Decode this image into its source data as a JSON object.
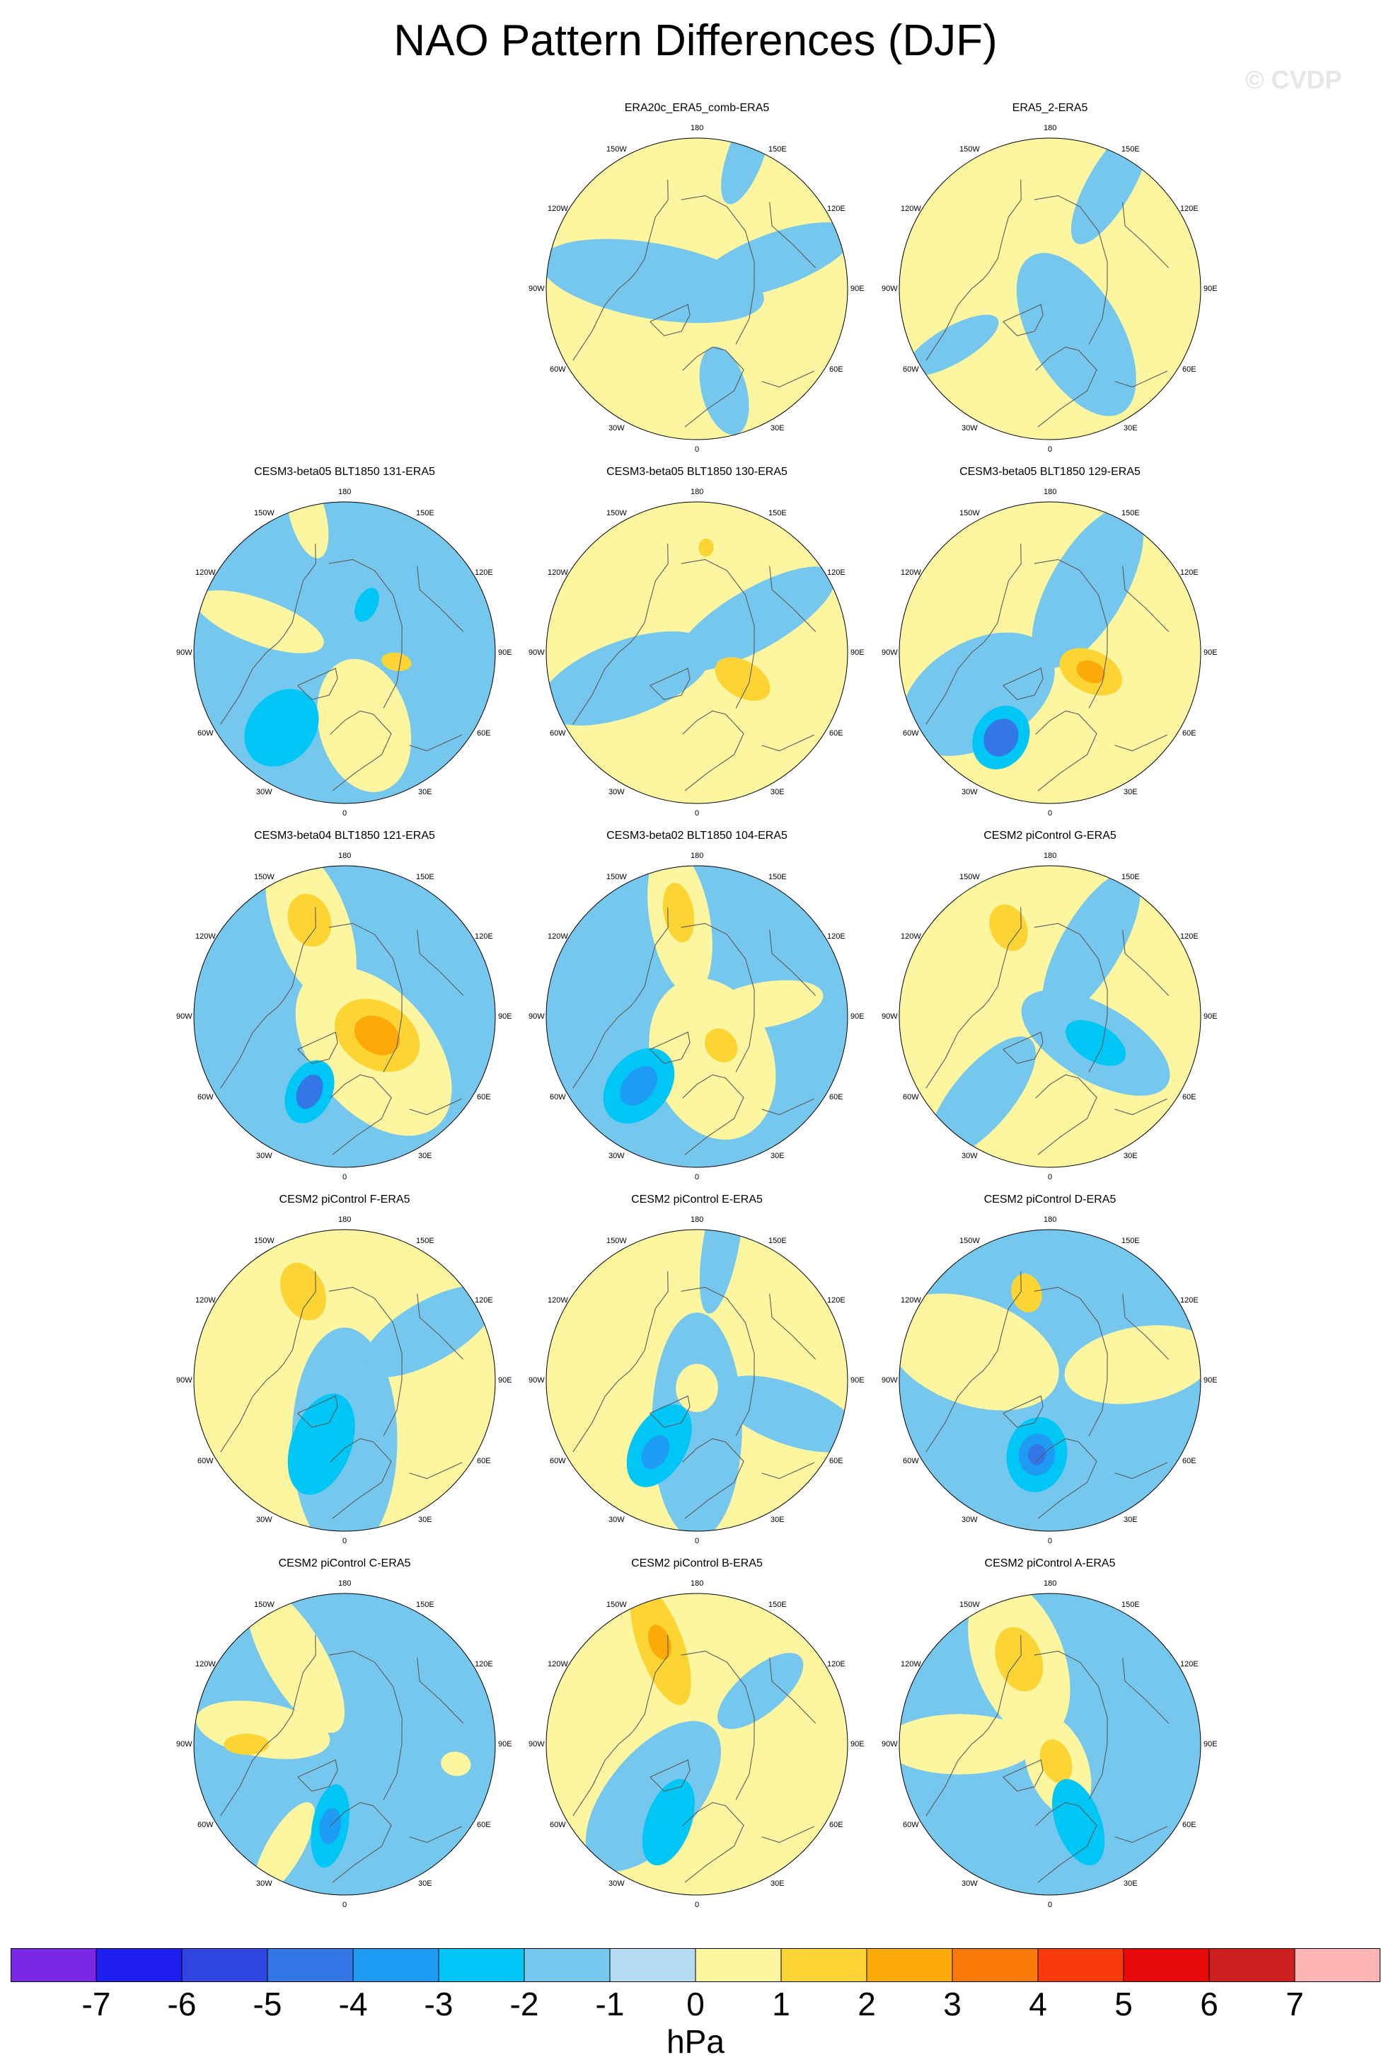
{
  "title": "NAO Pattern Differences (DJF)",
  "watermark": "© CVDP",
  "lon_labels": [
    "180",
    "150E",
    "120E",
    "90E",
    "60E",
    "30E",
    "0",
    "30W",
    "60W",
    "90W",
    "120W",
    "150W"
  ],
  "colors": {
    "land_line": "#5a5a5a",
    "levels": [
      "#7c27e8",
      "#1f1ff0",
      "#2f46e0",
      "#3377e6",
      "#1e9bf2",
      "#00c6f5",
      "#75c7ee",
      "#b3dcf2",
      "#fdf6a1",
      "#fcd535",
      "#fcaa08",
      "#fc7a0a",
      "#fa3a0a",
      "#e80a0a",
      "#cc1f1f",
      "#fcb4b4"
    ]
  },
  "chart_data": {
    "type": "polar-contour-map",
    "units": "hPa",
    "colorbar_ticks": [
      "-7",
      "-6",
      "-5",
      "-4",
      "-3",
      "-2",
      "-1",
      "0",
      "1",
      "2",
      "3",
      "4",
      "5",
      "6",
      "7"
    ],
    "panels": [
      {
        "title": "ERA20c_ERA5_comb-ERA5",
        "row": 0,
        "col": 1,
        "base": 1,
        "features": [
          {
            "lon": 260,
            "r": 0.3,
            "a": 0.75,
            "b": 0.25,
            "value": -1
          },
          {
            "lon": 110,
            "r": 0.55,
            "a": 0.55,
            "b": 0.18,
            "value": -1
          },
          {
            "lon": 160,
            "r": 0.95,
            "a": 0.35,
            "b": 0.12,
            "value": -1
          },
          {
            "lon": 15,
            "r": 0.7,
            "a": 0.3,
            "b": 0.15,
            "value": -1
          }
        ]
      },
      {
        "title": "ERA5_2-ERA5",
        "row": 0,
        "col": 2,
        "base": 1,
        "features": [
          {
            "lon": 30,
            "r": 0.35,
            "a": 0.6,
            "b": 0.3,
            "value": -1
          },
          {
            "lon": 150,
            "r": 0.8,
            "a": 0.45,
            "b": 0.15,
            "value": -1
          },
          {
            "lon": 300,
            "r": 0.75,
            "a": 0.35,
            "b": 0.12,
            "value": -1
          }
        ]
      },
      {
        "title": "CESM3-beta05 BLT1850 131-ERA5",
        "row": 1,
        "col": 0,
        "base": -1,
        "features": [
          {
            "lon": 15,
            "r": 0.5,
            "a": 0.45,
            "b": 0.3,
            "value": 1
          },
          {
            "lon": 250,
            "r": 0.6,
            "a": 0.45,
            "b": 0.15,
            "value": 1
          },
          {
            "lon": 195,
            "r": 0.95,
            "a": 0.3,
            "b": 0.12,
            "value": 1
          },
          {
            "lon": 320,
            "r": 0.65,
            "a": 0.28,
            "b": 0.22,
            "value": -2
          },
          {
            "lon": 80,
            "r": 0.35,
            "a": 0.1,
            "b": 0.06,
            "value": 2
          },
          {
            "lon": 155,
            "r": 0.35,
            "a": 0.12,
            "b": 0.07,
            "value": -2
          }
        ]
      },
      {
        "title": "CESM3-beta05 BLT1850 130-ERA5",
        "row": 1,
        "col": 1,
        "base": 1,
        "features": [
          {
            "lon": 290,
            "r": 0.5,
            "a": 0.6,
            "b": 0.25,
            "value": -1
          },
          {
            "lon": 120,
            "r": 0.45,
            "a": 0.6,
            "b": 0.2,
            "value": -1
          },
          {
            "lon": 60,
            "r": 0.35,
            "a": 0.2,
            "b": 0.12,
            "value": 2
          },
          {
            "lon": 175,
            "r": 0.7,
            "a": 0.06,
            "b": 0.05,
            "value": 2
          }
        ]
      },
      {
        "title": "CESM3-beta05 BLT1850 129-ERA5",
        "row": 1,
        "col": 2,
        "base": 1,
        "features": [
          {
            "lon": 300,
            "r": 0.55,
            "a": 0.55,
            "b": 0.35,
            "value": -1
          },
          {
            "lon": 150,
            "r": 0.5,
            "a": 0.6,
            "b": 0.25,
            "value": -1
          },
          {
            "lon": 330,
            "r": 0.65,
            "a": 0.22,
            "b": 0.18,
            "value": -2
          },
          {
            "lon": 330,
            "r": 0.65,
            "a": 0.13,
            "b": 0.11,
            "value": -4
          },
          {
            "lon": 65,
            "r": 0.3,
            "a": 0.22,
            "b": 0.14,
            "value": 2
          },
          {
            "lon": 65,
            "r": 0.3,
            "a": 0.1,
            "b": 0.07,
            "value": 3
          }
        ]
      },
      {
        "title": "CESM3-beta04 BLT1850 121-ERA5",
        "row": 2,
        "col": 0,
        "base": -1,
        "features": [
          {
            "lon": 40,
            "r": 0.3,
            "a": 0.65,
            "b": 0.4,
            "value": 1
          },
          {
            "lon": 200,
            "r": 0.65,
            "a": 0.55,
            "b": 0.25,
            "value": 1
          },
          {
            "lon": 200,
            "r": 0.68,
            "a": 0.18,
            "b": 0.14,
            "value": 2
          },
          {
            "lon": 60,
            "r": 0.25,
            "a": 0.3,
            "b": 0.22,
            "value": 2
          },
          {
            "lon": 60,
            "r": 0.25,
            "a": 0.16,
            "b": 0.12,
            "value": 3
          },
          {
            "lon": 335,
            "r": 0.55,
            "a": 0.22,
            "b": 0.15,
            "value": -2
          },
          {
            "lon": 335,
            "r": 0.55,
            "a": 0.12,
            "b": 0.08,
            "value": -4
          }
        ]
      },
      {
        "title": "CESM3-beta02 BLT1850 104-ERA5",
        "row": 2,
        "col": 1,
        "base": -1,
        "features": [
          {
            "lon": 20,
            "r": 0.3,
            "a": 0.55,
            "b": 0.4,
            "value": 1
          },
          {
            "lon": 190,
            "r": 0.65,
            "a": 0.5,
            "b": 0.2,
            "value": 1
          },
          {
            "lon": 190,
            "r": 0.7,
            "a": 0.2,
            "b": 0.1,
            "value": 2
          },
          {
            "lon": 100,
            "r": 0.45,
            "a": 0.4,
            "b": 0.15,
            "value": 1
          },
          {
            "lon": 40,
            "r": 0.25,
            "a": 0.12,
            "b": 0.1,
            "value": 2
          },
          {
            "lon": 320,
            "r": 0.6,
            "a": 0.28,
            "b": 0.2,
            "value": -2
          },
          {
            "lon": 320,
            "r": 0.6,
            "a": 0.15,
            "b": 0.1,
            "value": -3
          }
        ]
      },
      {
        "title": "CESM2 piControl G-ERA5",
        "row": 2,
        "col": 2,
        "base": 1,
        "features": [
          {
            "lon": 60,
            "r": 0.35,
            "a": 0.55,
            "b": 0.25,
            "value": -1
          },
          {
            "lon": 60,
            "r": 0.35,
            "a": 0.22,
            "b": 0.12,
            "value": -2
          },
          {
            "lon": 320,
            "r": 0.7,
            "a": 0.5,
            "b": 0.2,
            "value": -1
          },
          {
            "lon": 150,
            "r": 0.55,
            "a": 0.55,
            "b": 0.2,
            "value": -1
          },
          {
            "lon": 205,
            "r": 0.65,
            "a": 0.16,
            "b": 0.12,
            "value": 2
          }
        ]
      },
      {
        "title": "CESM2 piControl F-ERA5",
        "row": 3,
        "col": 0,
        "base": 1,
        "features": [
          {
            "lon": 0,
            "r": 0.4,
            "a": 0.75,
            "b": 0.35,
            "value": -1
          },
          {
            "lon": 340,
            "r": 0.45,
            "a": 0.35,
            "b": 0.2,
            "value": -2
          },
          {
            "lon": 120,
            "r": 0.65,
            "a": 0.5,
            "b": 0.2,
            "value": -1
          },
          {
            "lon": 205,
            "r": 0.65,
            "a": 0.2,
            "b": 0.14,
            "value": 2
          }
        ]
      },
      {
        "title": "CESM2 piControl E-ERA5",
        "row": 3,
        "col": 1,
        "base": 1,
        "features": [
          {
            "lon": 0,
            "r": 0.3,
            "a": 0.75,
            "b": 0.3,
            "value": -1
          },
          {
            "lon": 330,
            "r": 0.5,
            "a": 0.3,
            "b": 0.18,
            "value": -2
          },
          {
            "lon": 330,
            "r": 0.55,
            "a": 0.12,
            "b": 0.08,
            "value": -3
          },
          {
            "lon": 70,
            "r": 0.65,
            "a": 0.5,
            "b": 0.2,
            "value": -1
          },
          {
            "lon": 170,
            "r": 0.95,
            "a": 0.5,
            "b": 0.12,
            "value": -1
          },
          {
            "lon": 0,
            "r": 0.05,
            "a": 0.16,
            "b": 0.14,
            "value": 1
          }
        ]
      },
      {
        "title": "CESM2 piControl D-ERA5",
        "row": 3,
        "col": 2,
        "base": -1,
        "features": [
          {
            "lon": 250,
            "r": 0.55,
            "a": 0.6,
            "b": 0.35,
            "value": 1
          },
          {
            "lon": 100,
            "r": 0.6,
            "a": 0.5,
            "b": 0.25,
            "value": 1
          },
          {
            "lon": 195,
            "r": 0.6,
            "a": 0.13,
            "b": 0.1,
            "value": 2
          },
          {
            "lon": 350,
            "r": 0.5,
            "a": 0.25,
            "b": 0.2,
            "value": -2
          },
          {
            "lon": 350,
            "r": 0.5,
            "a": 0.14,
            "b": 0.12,
            "value": -3
          },
          {
            "lon": 350,
            "r": 0.5,
            "a": 0.07,
            "b": 0.06,
            "value": -4
          }
        ]
      },
      {
        "title": "CESM2 piControl C-ERA5",
        "row": 4,
        "col": 0,
        "base": -1,
        "features": [
          {
            "lon": 210,
            "r": 0.65,
            "a": 0.55,
            "b": 0.2,
            "value": 1
          },
          {
            "lon": 260,
            "r": 0.55,
            "a": 0.45,
            "b": 0.18,
            "value": 1
          },
          {
            "lon": 270,
            "r": 0.65,
            "a": 0.15,
            "b": 0.07,
            "value": 2
          },
          {
            "lon": 330,
            "r": 0.8,
            "a": 0.35,
            "b": 0.12,
            "value": 1
          },
          {
            "lon": 80,
            "r": 0.75,
            "a": 0.1,
            "b": 0.08,
            "value": 1
          },
          {
            "lon": 350,
            "r": 0.55,
            "a": 0.28,
            "b": 0.12,
            "value": -2
          },
          {
            "lon": 350,
            "r": 0.55,
            "a": 0.12,
            "b": 0.07,
            "value": -3
          }
        ]
      },
      {
        "title": "CESM2 piControl B-ERA5",
        "row": 4,
        "col": 1,
        "base": 1,
        "features": [
          {
            "lon": 320,
            "r": 0.45,
            "a": 0.6,
            "b": 0.3,
            "value": -1
          },
          {
            "lon": 340,
            "r": 0.55,
            "a": 0.3,
            "b": 0.15,
            "value": -2
          },
          {
            "lon": 130,
            "r": 0.55,
            "a": 0.35,
            "b": 0.15,
            "value": -1
          },
          {
            "lon": 200,
            "r": 0.7,
            "a": 0.42,
            "b": 0.15,
            "value": 2
          },
          {
            "lon": 200,
            "r": 0.72,
            "a": 0.12,
            "b": 0.07,
            "value": 3
          }
        ]
      },
      {
        "title": "CESM2 piControl A-ERA5",
        "row": 4,
        "col": 2,
        "base": -1,
        "features": [
          {
            "lon": 200,
            "r": 0.6,
            "a": 0.55,
            "b": 0.3,
            "value": 1
          },
          {
            "lon": 200,
            "r": 0.6,
            "a": 0.22,
            "b": 0.15,
            "value": 2
          },
          {
            "lon": 270,
            "r": 0.6,
            "a": 0.5,
            "b": 0.2,
            "value": 1
          },
          {
            "lon": 20,
            "r": 0.15,
            "a": 0.35,
            "b": 0.2,
            "value": 1
          },
          {
            "lon": 20,
            "r": 0.12,
            "a": 0.15,
            "b": 0.1,
            "value": 2
          },
          {
            "lon": 20,
            "r": 0.55,
            "a": 0.3,
            "b": 0.15,
            "value": -2
          }
        ]
      }
    ]
  }
}
